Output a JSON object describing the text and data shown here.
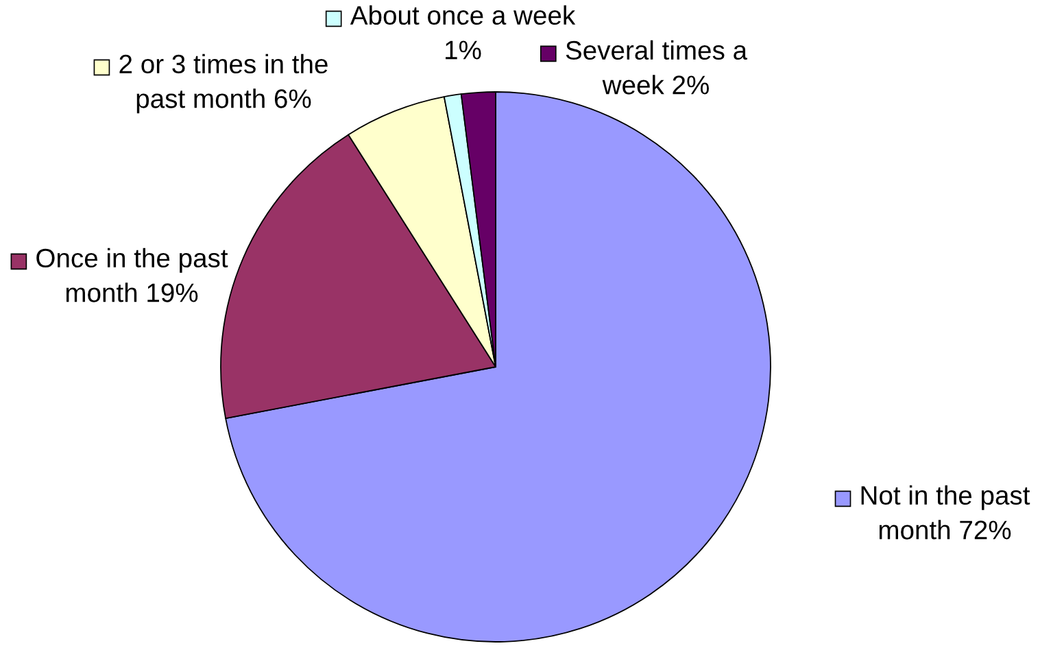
{
  "chart_data": {
    "type": "pie",
    "categories": [
      "Not in the past month",
      "Once in the past month",
      "2 or 3 times in the past month",
      "About once a week",
      "Several times a week"
    ],
    "values": [
      72,
      19,
      6,
      1,
      2
    ],
    "value_labels": [
      "72%",
      "19%",
      "6%",
      "1%",
      "2%"
    ],
    "colors": [
      "#9999ff",
      "#993366",
      "#ffffcc",
      "#ccffff",
      "#660066"
    ],
    "legend": "top right"
  }
}
